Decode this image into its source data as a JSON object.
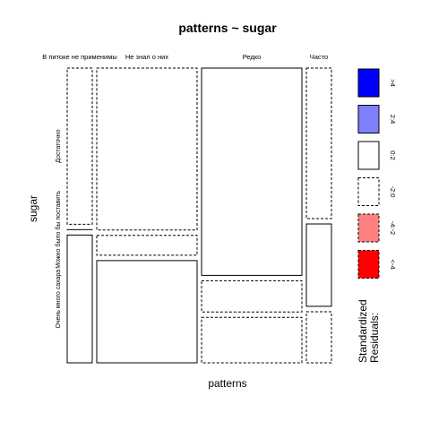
{
  "chart_data": {
    "type": "mosaic",
    "title": "patterns ~ sugar",
    "xlabel": "patterns",
    "ylabel": "sugar",
    "columns": [
      "В питоке не применимы",
      "Не знал о них",
      "Редко",
      "Часто"
    ],
    "rows": [
      "Достаточно",
      "Можно было бы поставить",
      "Очень много сахара"
    ],
    "column_widths": [
      0.087,
      0.348,
      0.348,
      0.087
    ],
    "cells": [
      [
        0.55,
        0.0,
        0.45
      ],
      [
        0.57,
        0.07,
        0.36
      ],
      [
        0.73,
        0.11,
        0.16
      ],
      [
        0.53,
        0.29,
        0.18
      ]
    ],
    "residual_class": [
      [
        "neg_low",
        "pos_low",
        "pos_low"
      ],
      [
        "neg_low",
        "neg_low",
        "pos_low"
      ],
      [
        "pos_low",
        "neg_low",
        "neg_low"
      ],
      [
        "neg_low",
        "pos_low",
        "neg_low"
      ]
    ],
    "legend": {
      "title": "Standardized\nResiduals:",
      "entries": [
        {
          "key": "gt4",
          "label": ">4",
          "fill": "#0000ff",
          "dashed": false
        },
        {
          "key": "pos_mid",
          "label": "2:4",
          "fill": "#8080ff",
          "dashed": false
        },
        {
          "key": "pos_low",
          "label": "0:2",
          "fill": "#ffffff",
          "dashed": false
        },
        {
          "key": "neg_low",
          "label": "-2:0",
          "fill": "#ffffff",
          "dashed": true
        },
        {
          "key": "neg_mid",
          "label": "-4:-2",
          "fill": "#ff8080",
          "dashed": true
        },
        {
          "key": "lt4",
          "label": "<-4",
          "fill": "#ff0000",
          "dashed": true
        }
      ]
    }
  }
}
